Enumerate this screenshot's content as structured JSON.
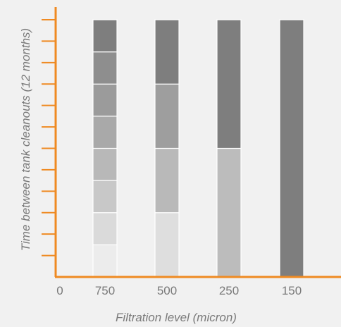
{
  "chart_data": {
    "type": "bar",
    "stacked": true,
    "xlabel": "Filtration level (micron)",
    "ylabel": "Time between tank cleanouts (12 months)",
    "x_ticks": [
      "0",
      "750",
      "500",
      "250",
      "150"
    ],
    "categories": [
      "750",
      "500",
      "250",
      "150"
    ],
    "ylim": [
      0,
      12
    ],
    "y_tick_count": 12,
    "grid": false,
    "segments": [
      [
        1.5,
        1.5,
        1.5,
        1.5,
        1.5,
        1.5,
        1.5,
        1.5
      ],
      [
        3,
        3,
        3,
        3
      ],
      [
        6,
        6
      ],
      [
        12
      ]
    ],
    "segment_colors": [
      [
        "#ececec",
        "#dadada",
        "#c8c8c8",
        "#b8b8b8",
        "#a9a9a9",
        "#9b9b9b",
        "#8e8e8e",
        "#7e7e7e"
      ],
      [
        "#dedede",
        "#b9b9b9",
        "#9e9e9e",
        "#7e7e7e"
      ],
      [
        "#bcbcbc",
        "#7e7e7e"
      ],
      [
        "#7e7e7e"
      ]
    ],
    "colors": {
      "axis": "#ef8a22",
      "text": "#7a7a7a",
      "background": "#f1f1f1"
    }
  }
}
